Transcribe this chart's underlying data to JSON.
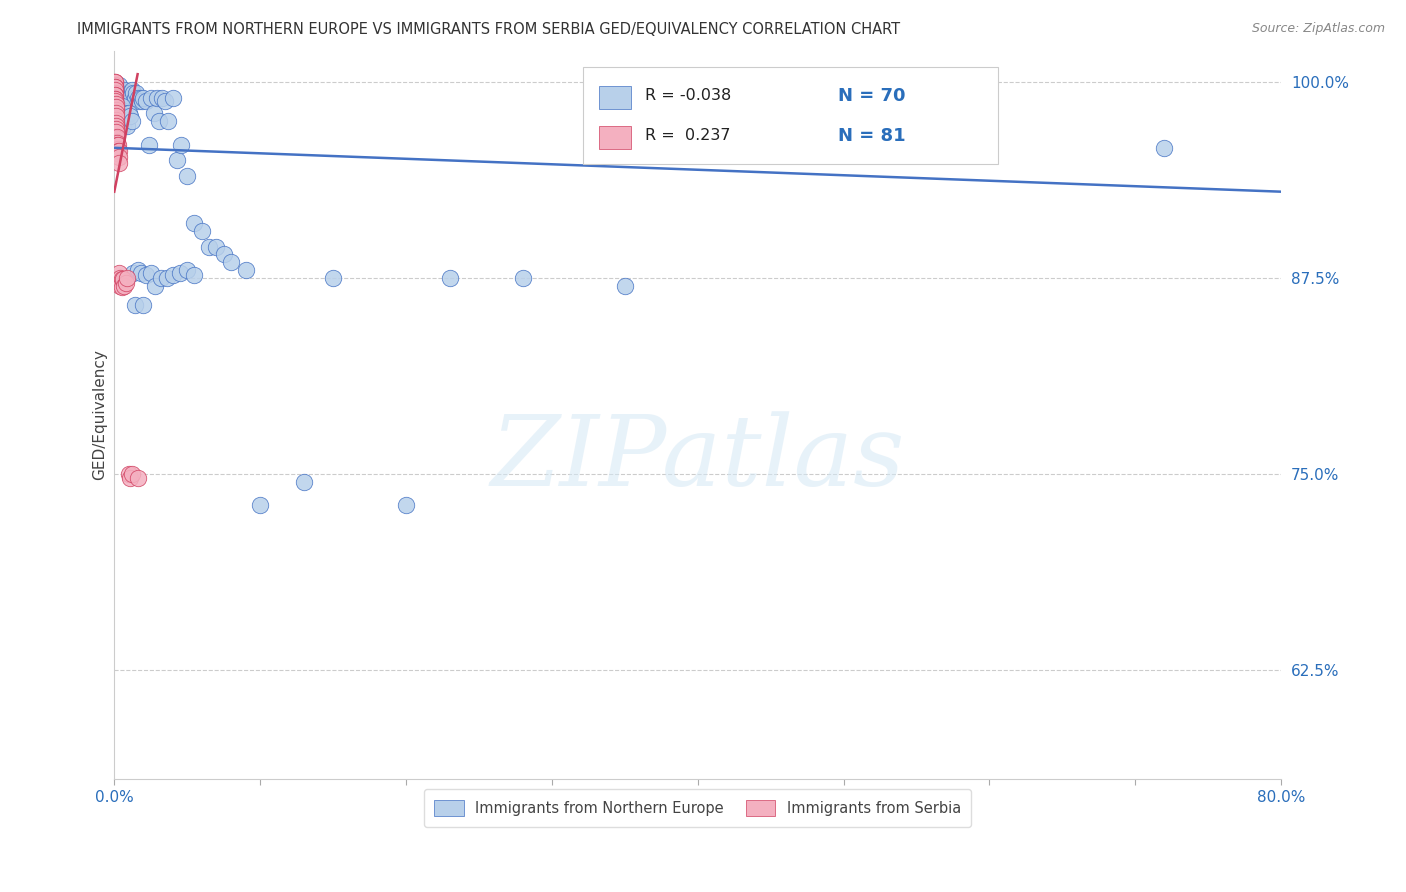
{
  "title": "IMMIGRANTS FROM NORTHERN EUROPE VS IMMIGRANTS FROM SERBIA GED/EQUIVALENCY CORRELATION CHART",
  "source": "Source: ZipAtlas.com",
  "ylabel": "GED/Equivalency",
  "watermark": "ZIPatlas",
  "background_color": "#ffffff",
  "xlim": [
    0.0,
    0.8
  ],
  "ylim": [
    0.555,
    1.02
  ],
  "ytick_vals": [
    1.0,
    0.875,
    0.75,
    0.625
  ],
  "ytick_labels": [
    "100.0%",
    "87.5%",
    "75.0%",
    "62.5%"
  ],
  "xtick_vals": [
    0.0,
    0.1,
    0.2,
    0.3,
    0.4,
    0.5,
    0.6,
    0.7,
    0.8
  ],
  "xtick_labels": [
    "0.0%",
    "",
    "",
    "",
    "",
    "",
    "",
    "",
    "80.0%"
  ],
  "blue_R": -0.038,
  "blue_N": 70,
  "blue_color": "#b8d0ea",
  "blue_edge": "#4472c4",
  "blue_label": "Immigrants from Northern Europe",
  "pink_R": 0.237,
  "pink_N": 81,
  "pink_color": "#f4b0c0",
  "pink_edge": "#d04060",
  "pink_label": "Immigrants from Serbia",
  "blue_trend_x": [
    0.0,
    0.8
  ],
  "blue_trend_y": [
    0.958,
    0.93
  ],
  "pink_trend_x": [
    0.0,
    0.016
  ],
  "pink_trend_y": [
    0.93,
    1.005
  ],
  "blue_x": [
    0.003,
    0.004,
    0.005,
    0.006,
    0.007,
    0.008,
    0.009,
    0.01,
    0.011,
    0.012,
    0.013,
    0.014,
    0.015,
    0.016,
    0.017,
    0.018,
    0.019,
    0.02,
    0.022,
    0.024,
    0.025,
    0.027,
    0.029,
    0.031,
    0.033,
    0.035,
    0.037,
    0.04,
    0.043,
    0.046,
    0.05,
    0.055,
    0.06,
    0.065,
    0.07,
    0.075,
    0.08,
    0.09,
    0.1,
    0.13,
    0.15,
    0.2,
    0.23,
    0.28,
    0.35,
    0.6,
    0.72,
    0.004,
    0.005,
    0.006,
    0.007,
    0.008,
    0.009,
    0.01,
    0.011,
    0.012,
    0.013,
    0.014,
    0.016,
    0.018,
    0.02,
    0.022,
    0.025,
    0.028,
    0.032,
    0.036,
    0.04,
    0.045,
    0.05,
    0.055
  ],
  "blue_y": [
    0.998,
    0.995,
    0.993,
    0.99,
    0.995,
    0.992,
    0.99,
    0.993,
    0.991,
    0.995,
    0.993,
    0.99,
    0.993,
    0.99,
    0.988,
    0.99,
    0.988,
    0.99,
    0.988,
    0.96,
    0.99,
    0.98,
    0.99,
    0.975,
    0.99,
    0.988,
    0.975,
    0.99,
    0.95,
    0.96,
    0.94,
    0.91,
    0.905,
    0.895,
    0.895,
    0.89,
    0.885,
    0.88,
    0.73,
    0.745,
    0.875,
    0.73,
    0.875,
    0.875,
    0.87,
    0.962,
    0.958,
    0.975,
    0.985,
    0.972,
    0.98,
    0.978,
    0.972,
    0.98,
    0.978,
    0.975,
    0.878,
    0.858,
    0.88,
    0.878,
    0.858,
    0.877,
    0.878,
    0.87,
    0.875,
    0.875,
    0.877,
    0.878,
    0.88,
    0.877
  ],
  "pink_x": [
    0.0001,
    0.0001,
    0.0001,
    0.0001,
    0.0001,
    0.0001,
    0.0001,
    0.0001,
    0.0001,
    0.0001,
    0.0001,
    0.0001,
    0.0002,
    0.0002,
    0.0002,
    0.0002,
    0.0002,
    0.0002,
    0.0002,
    0.0002,
    0.0002,
    0.0003,
    0.0003,
    0.0003,
    0.0003,
    0.0003,
    0.0003,
    0.0004,
    0.0004,
    0.0004,
    0.0004,
    0.0005,
    0.0005,
    0.0005,
    0.0005,
    0.0006,
    0.0006,
    0.0006,
    0.0007,
    0.0007,
    0.0008,
    0.0008,
    0.0009,
    0.0009,
    0.001,
    0.001,
    0.001,
    0.001,
    0.0012,
    0.0012,
    0.0013,
    0.0014,
    0.0015,
    0.0015,
    0.0016,
    0.0017,
    0.0018,
    0.002,
    0.002,
    0.002,
    0.0022,
    0.0023,
    0.0024,
    0.0025,
    0.003,
    0.003,
    0.003,
    0.0032,
    0.0035,
    0.004,
    0.004,
    0.005,
    0.005,
    0.006,
    0.007,
    0.008,
    0.009,
    0.01,
    0.011,
    0.012,
    0.016
  ],
  "pink_y": [
    1.0,
    0.998,
    0.996,
    0.993,
    0.99,
    0.987,
    0.984,
    0.98,
    0.977,
    0.973,
    0.97,
    0.967,
    1.0,
    0.998,
    0.995,
    0.992,
    0.988,
    0.985,
    0.982,
    0.978,
    0.975,
    1.0,
    0.997,
    0.994,
    0.991,
    0.988,
    0.984,
    0.997,
    0.993,
    0.99,
    0.987,
    0.995,
    0.992,
    0.988,
    0.985,
    0.992,
    0.989,
    0.985,
    0.989,
    0.986,
    0.988,
    0.984,
    0.986,
    0.982,
    0.984,
    0.98,
    0.976,
    0.972,
    0.978,
    0.974,
    0.972,
    0.97,
    0.968,
    0.964,
    0.962,
    0.958,
    0.955,
    0.965,
    0.961,
    0.957,
    0.96,
    0.957,
    0.96,
    0.956,
    0.956,
    0.952,
    0.948,
    0.878,
    0.872,
    0.875,
    0.87,
    0.874,
    0.869,
    0.874,
    0.87,
    0.872,
    0.875,
    0.75,
    0.747,
    0.75,
    0.747
  ]
}
